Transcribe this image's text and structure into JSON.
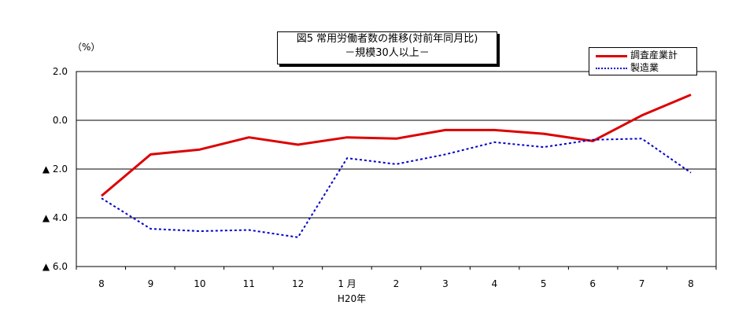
{
  "chart_data": {
    "type": "line",
    "title": "図5 常用労働者数の推移(対前年同月比)",
    "subtitle": "－規模30人以上－",
    "unit_label": "（%）",
    "categories": [
      "8",
      "9",
      "10",
      "11",
      "12",
      "1 月",
      "2",
      "3",
      "4",
      "5",
      "6",
      "7",
      "8"
    ],
    "x_sublabel": "H20年",
    "ylim": [
      -6.0,
      2.0
    ],
    "y_ticks": [
      2.0,
      0.0,
      -2.0,
      -4.0,
      -6.0
    ],
    "y_tick_labels": [
      "2.0",
      "0.0",
      "▲ 2.0",
      "▲ 4.0",
      "▲ 6.0"
    ],
    "grid": true,
    "legend_position": "top-right",
    "series": [
      {
        "name": "調査産業計",
        "color": "#dd0000",
        "style": "solid",
        "values": [
          -3.1,
          -1.4,
          -1.2,
          -0.7,
          -1.0,
          -0.7,
          -0.75,
          -0.4,
          -0.4,
          -0.55,
          -0.85,
          0.2,
          1.05
        ]
      },
      {
        "name": "製造業",
        "color": "#0000cc",
        "style": "dotted",
        "values": [
          -3.2,
          -4.45,
          -4.55,
          -4.5,
          -4.8,
          -1.55,
          -1.8,
          -1.4,
          -0.9,
          -1.1,
          -0.8,
          -0.75,
          -2.15
        ]
      }
    ]
  }
}
